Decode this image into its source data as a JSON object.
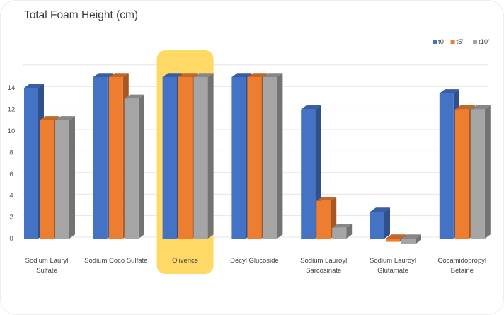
{
  "chart_data": {
    "type": "bar",
    "title": "Total Foam Height (cm)",
    "categories": [
      [
        "Sodium Lauryl",
        "Sulfate"
      ],
      [
        "Sodium Coco Sulfate"
      ],
      [
        "Oliverice"
      ],
      [
        "Decyl Glucoside"
      ],
      [
        "Sodium Lauroyl",
        "Sarcosinate"
      ],
      [
        "Sodium Lauroyl",
        "Glutamate"
      ],
      [
        "Cocamidopropyl",
        "Betaine"
      ]
    ],
    "series": [
      {
        "name": "t0",
        "color": "#4472c4",
        "values": [
          14,
          15,
          15,
          15,
          12,
          2.5,
          13.5
        ]
      },
      {
        "name": "t5'",
        "color": "#ed7d31",
        "values": [
          11,
          15,
          15,
          15,
          3.5,
          -0.3,
          12
        ]
      },
      {
        "name": "t10'",
        "color": "#a5a5a5",
        "values": [
          11,
          13,
          15,
          15,
          1,
          -0.5,
          12
        ]
      }
    ],
    "y_ticks": [
      "0",
      "2",
      "4",
      "6",
      "8",
      "10",
      "12",
      "14"
    ],
    "ylim": [
      -0.5,
      16.5
    ],
    "highlight_category": "Oliverice",
    "highlight_color": "#ffd966",
    "grid": true,
    "legend_position": "top-right",
    "bar_style": "3d"
  }
}
